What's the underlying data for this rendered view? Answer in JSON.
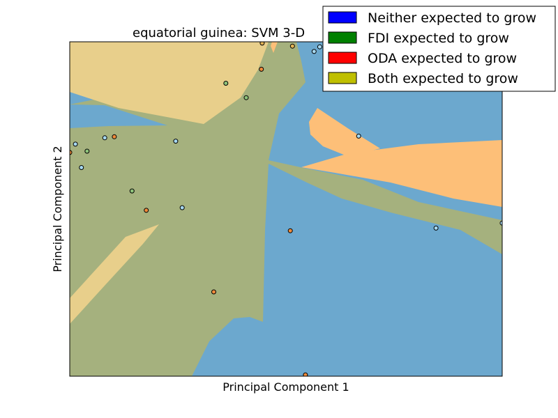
{
  "chart_data": {
    "type": "scatter",
    "title": "equatorial guinea: SVM 3-D",
    "xlabel": "Principal Component 1",
    "ylabel": "Principal Component 2",
    "grid": false,
    "legend_position": "top-right",
    "xlim": [
      0,
      1
    ],
    "ylim": [
      0,
      1
    ],
    "region_colors": {
      "neither": "#6ca8ce",
      "fdi": "#a5b17e",
      "oda": "#fdbf78",
      "both": "#e8cf8b"
    },
    "legend": [
      {
        "label": "Neither expected to grow",
        "color": "#0000ff"
      },
      {
        "label": "FDI expected to grow",
        "color": "#008000"
      },
      {
        "label": "ODA expected to grow",
        "color": "#ff0000"
      },
      {
        "label": "Both expected to grow",
        "color": "#bfbf00"
      }
    ],
    "series": [
      {
        "class": "neither",
        "color": "#a6d8f0",
        "x": [
          0.013,
          0.081,
          0.027,
          0.245,
          0.26,
          0.565,
          0.578,
          0.668,
          0.847,
          1.0
        ],
        "y": [
          0.694,
          0.713,
          0.624,
          0.703,
          0.504,
          0.971,
          0.985,
          0.718,
          0.443,
          0.458
        ]
      },
      {
        "class": "fdi",
        "color": "#8ec27a",
        "x": [
          0.04,
          0.144,
          0.361,
          0.408
        ],
        "y": [
          0.673,
          0.554,
          0.876,
          0.833
        ]
      },
      {
        "class": "oda",
        "color": "#f08a3a",
        "x": [
          0.0,
          0.103,
          0.177,
          0.333,
          0.443,
          0.51,
          0.545
        ],
        "y": [
          0.669,
          0.716,
          0.496,
          0.252,
          0.918,
          0.435,
          0.004
        ]
      },
      {
        "class": "both",
        "color": "#e4b455",
        "x": [
          0.445,
          0.515
        ],
        "y": [
          0.996,
          0.987
        ]
      }
    ]
  }
}
